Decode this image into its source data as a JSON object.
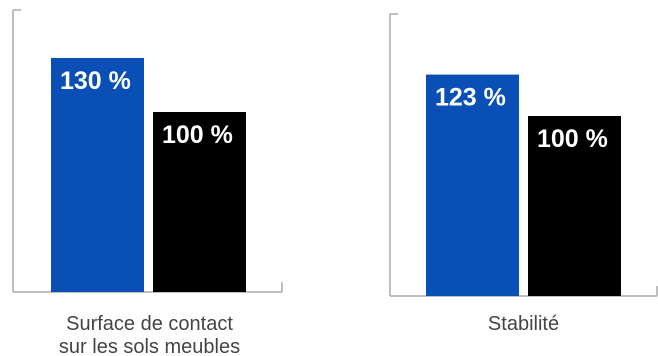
{
  "chart_data": [
    {
      "type": "bar",
      "categories": [
        "Surface de contact sur les sols meubles"
      ],
      "category_lines": [
        "Surface de contact",
        "sur les sols meubles"
      ],
      "ylim": [
        0,
        160
      ],
      "series": [
        {
          "values": [
            130
          ],
          "labels": [
            "130 %"
          ],
          "color": "#0a4fb5"
        },
        {
          "values": [
            100
          ],
          "labels": [
            "100 %"
          ],
          "color": "#000000"
        }
      ],
      "grid": false
    },
    {
      "type": "bar",
      "categories": [
        "Stabilité"
      ],
      "category_lines": [
        "Stabilité"
      ],
      "ylim": [
        0,
        160
      ],
      "series": [
        {
          "values": [
            123
          ],
          "labels": [
            "123 %"
          ],
          "color": "#0a4fb5"
        },
        {
          "values": [
            100
          ],
          "labels": [
            "100 %"
          ],
          "color": "#000000"
        }
      ],
      "grid": false
    }
  ],
  "colors": {
    "axis": "#aaaaaa",
    "blue_label_text": "#ffffff",
    "black_label_text": "#ffffff",
    "category_text": "#444444"
  }
}
